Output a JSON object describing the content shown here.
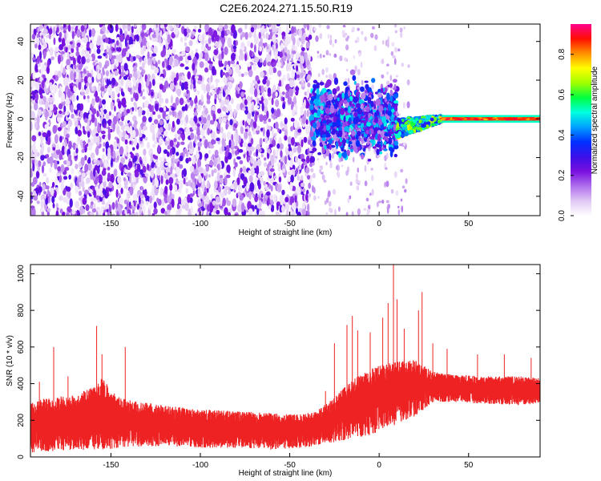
{
  "title": "C2E6.2024.271.15.50.R19",
  "colors": {
    "snr_series": "#ee2222",
    "axis": "#000000",
    "colormap": [
      "#ffffff",
      "#e0c8f4",
      "#b070ec",
      "#7a10e0",
      "#3a10e8",
      "#0030ff",
      "#00a0ff",
      "#00ffe0",
      "#00ff40",
      "#a0ff00",
      "#ffff00",
      "#ff9000",
      "#ff1000",
      "#ff0090"
    ]
  },
  "chart_data": [
    {
      "type": "heatmap",
      "xlabel": "Height of straight line (km)",
      "ylabel": "Frequency (Hz)",
      "xlim": [
        -195,
        90
      ],
      "ylim": [
        -50,
        49
      ],
      "x_ticks": [
        -150,
        -100,
        -50,
        0,
        50
      ],
      "y_ticks": [
        -40,
        -20,
        0,
        20,
        40
      ],
      "colorbar": {
        "label": "Normalized spectral amplitude",
        "range": [
          0,
          0.95
        ],
        "ticks": [
          "0.0",
          "0.2",
          "0.4",
          "0.6",
          "0.8"
        ]
      },
      "regions": [
        {
          "x_range": [
            -195,
            -38
          ],
          "freq_range": [
            -50,
            49
          ],
          "amplitude": 0.05,
          "description_level": "diffuse noise"
        },
        {
          "x_range": [
            -38,
            10
          ],
          "freq_range": [
            -22,
            15
          ],
          "amplitude": 0.3,
          "center_freq": 0
        },
        {
          "x_range": [
            10,
            35
          ],
          "freq_range": [
            -10,
            3
          ],
          "amplitude": 0.5,
          "center_freq": [
            -5,
            0
          ]
        },
        {
          "x_range": [
            35,
            90
          ],
          "freq_range": [
            -2,
            2
          ],
          "amplitude": 0.9,
          "center_freq": 0
        }
      ]
    },
    {
      "type": "line",
      "xlabel": "Height of straight line (km)",
      "ylabel": "SNR (10 * v/v)",
      "xlim": [
        -195,
        90
      ],
      "ylim": [
        0,
        1050
      ],
      "x_ticks": [
        -150,
        -100,
        -50,
        0,
        50
      ],
      "y_ticks": [
        0,
        200,
        400,
        600,
        800,
        1000
      ],
      "envelope": {
        "x": [
          -195,
          -185,
          -170,
          -160,
          -155,
          -145,
          -120,
          -100,
          -80,
          -60,
          -45,
          -35,
          -25,
          -15,
          -5,
          0,
          10,
          20,
          25,
          30,
          40,
          60,
          80,
          90
        ],
        "low": [
          20,
          30,
          40,
          30,
          40,
          50,
          60,
          50,
          50,
          40,
          50,
          60,
          80,
          100,
          120,
          140,
          180,
          220,
          260,
          300,
          300,
          290,
          280,
          290
        ],
        "high": [
          290,
          330,
          340,
          380,
          430,
          320,
          280,
          260,
          250,
          240,
          230,
          250,
          330,
          420,
          480,
          500,
          520,
          530,
          500,
          470,
          450,
          440,
          440,
          430
        ]
      },
      "spikes": [
        {
          "x": -190,
          "y": 410
        },
        {
          "x": -182,
          "y": 600
        },
        {
          "x": -174,
          "y": 440
        },
        {
          "x": -158,
          "y": 715
        },
        {
          "x": -155,
          "y": 560
        },
        {
          "x": -142,
          "y": 600
        },
        {
          "x": -30,
          "y": 360
        },
        {
          "x": -25,
          "y": 620
        },
        {
          "x": -18,
          "y": 720
        },
        {
          "x": -15,
          "y": 770
        },
        {
          "x": -12,
          "y": 690
        },
        {
          "x": -5,
          "y": 680
        },
        {
          "x": 2,
          "y": 760
        },
        {
          "x": 5,
          "y": 840
        },
        {
          "x": 8,
          "y": 1050
        },
        {
          "x": 10,
          "y": 860
        },
        {
          "x": 14,
          "y": 700
        },
        {
          "x": 22,
          "y": 800
        },
        {
          "x": 24,
          "y": 900
        },
        {
          "x": 30,
          "y": 620
        },
        {
          "x": 38,
          "y": 590
        },
        {
          "x": 55,
          "y": 560
        },
        {
          "x": 70,
          "y": 560
        },
        {
          "x": 85,
          "y": 540
        }
      ]
    }
  ]
}
